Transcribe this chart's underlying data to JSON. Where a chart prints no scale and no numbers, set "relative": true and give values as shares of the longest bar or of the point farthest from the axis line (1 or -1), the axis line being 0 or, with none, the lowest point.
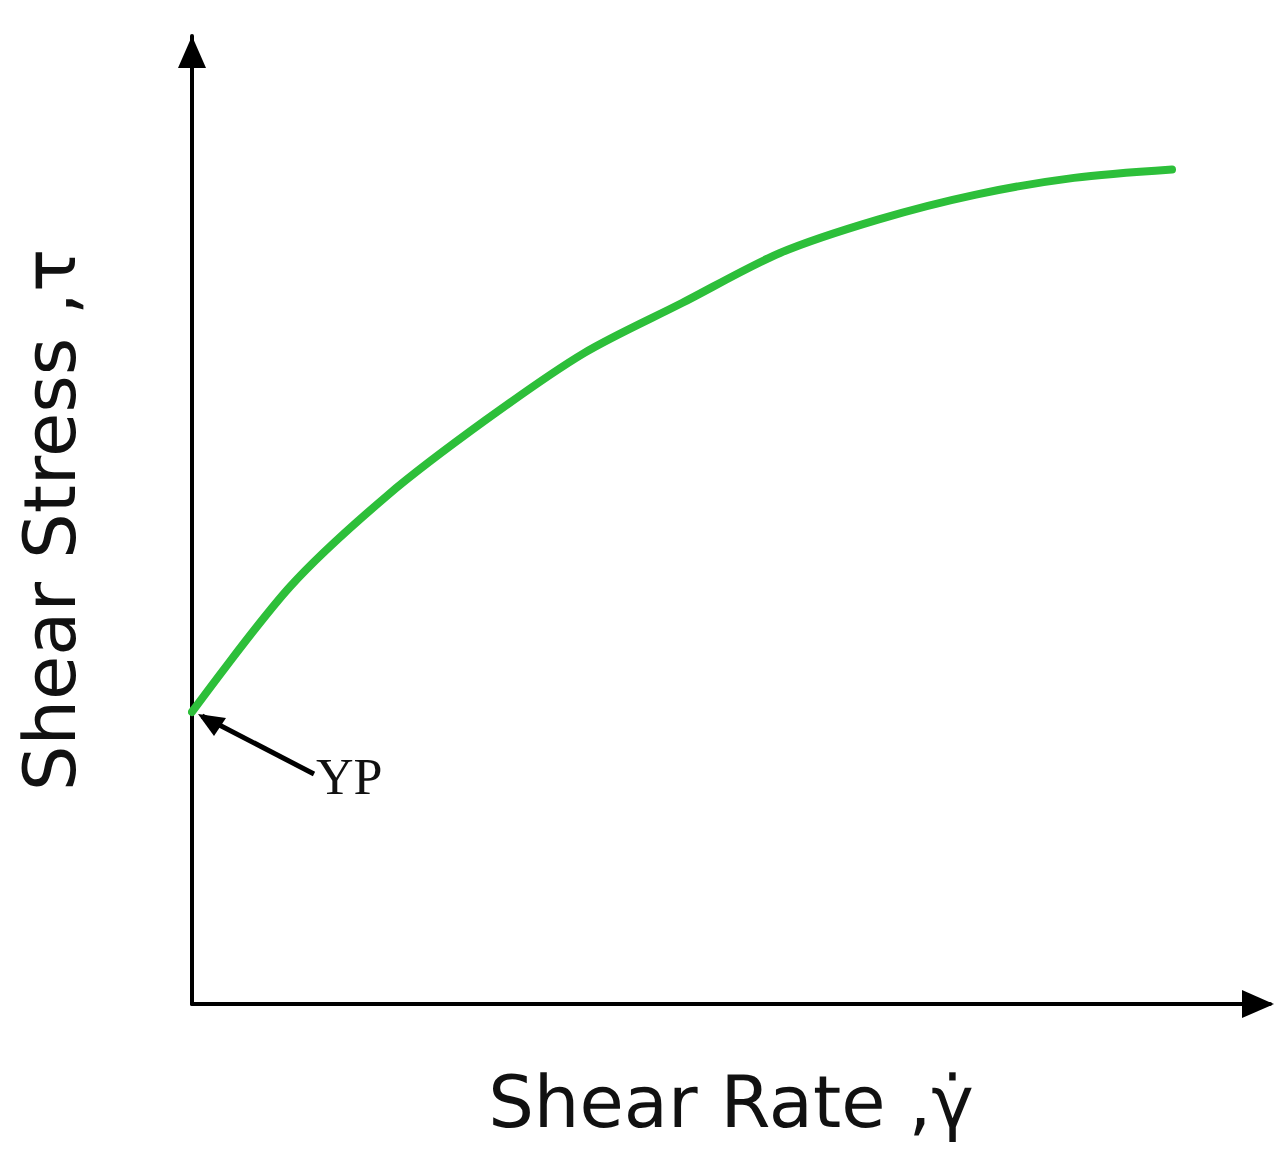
{
  "chart_data": {
    "type": "line",
    "relative": true,
    "xlabel": "Shear Rate ,γ̇",
    "ylabel": "Shear Stress ,τ",
    "categories": [
      null,
      null,
      null,
      null,
      null,
      null,
      null,
      null,
      null,
      null,
      null,
      null
    ],
    "series": [
      {
        "color": "#2dbf3a",
        "values": [
          0.35,
          0.5,
          0.61,
          0.7,
          0.78,
          0.84,
          0.9,
          0.94,
          0.97,
          0.99,
          1,
          null
        ]
      }
    ],
    "annotations": [
      "YP"
    ],
    "marker": "none",
    "line_style": "solid",
    "grid": false
  }
}
